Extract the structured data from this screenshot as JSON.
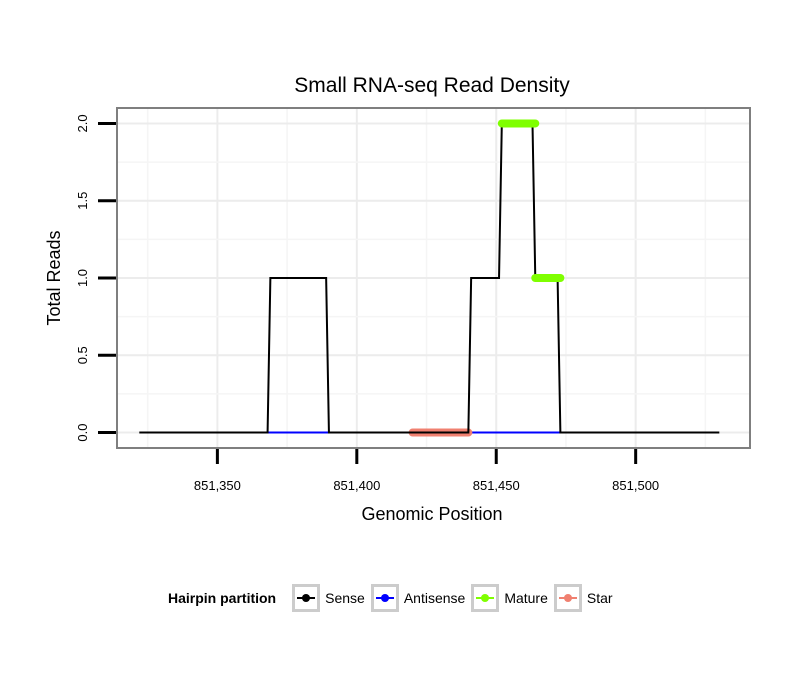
{
  "chart_data": {
    "type": "line",
    "title": "Small RNA-seq Read Density",
    "xlabel": "Genomic Position",
    "ylabel": "Total Reads",
    "xlim": [
      851314,
      851541
    ],
    "ylim": [
      -0.1,
      2.1
    ],
    "x_ticks": [
      851350,
      851400,
      851450,
      851500
    ],
    "x_tick_labels": [
      "851,350",
      "851,400",
      "851,450",
      "851,500"
    ],
    "y_ticks": [
      0,
      0.5,
      1,
      1.5,
      2
    ],
    "y_tick_labels": [
      "0.0",
      "0.5",
      "1.0",
      "1.5",
      "2.0"
    ],
    "grid": true,
    "legend_position": "bottom",
    "legend_title": "Hairpin partition",
    "series": [
      {
        "name": "Sense",
        "color": "#000000",
        "x": [
          851322,
          851368,
          851369,
          851389,
          851390,
          851440,
          851441,
          851451,
          851452,
          851463,
          851464,
          851472,
          851473,
          851530
        ],
        "y": [
          0,
          0,
          1,
          1,
          0,
          0,
          1,
          1,
          2,
          2,
          1,
          1,
          0,
          0
        ]
      },
      {
        "name": "Antisense",
        "color": "#0000ff",
        "x": [
          851368,
          851390,
          851440,
          851473
        ],
        "y": [
          0,
          0,
          0,
          0
        ]
      },
      {
        "name": "Mature",
        "color": "#7fff00",
        "x": [
          851452,
          851464
        ],
        "y": [
          2,
          2
        ],
        "x2": [
          851464,
          851473
        ],
        "y2": [
          1,
          1
        ]
      },
      {
        "name": "Star",
        "color": "#f08070",
        "x": [
          851420,
          851440
        ],
        "y": [
          0,
          0
        ]
      }
    ]
  }
}
